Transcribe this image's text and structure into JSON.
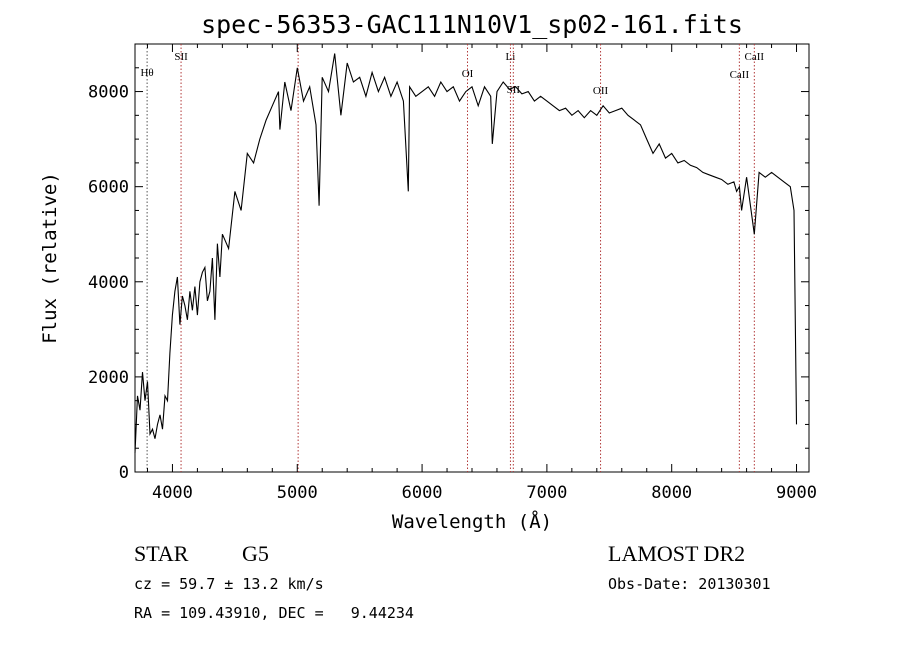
{
  "chart_data": {
    "type": "line",
    "title": "spec-56353-GAC111N10V1_sp02-161.fits",
    "xlabel": "Wavelength (Å)",
    "ylabel": "Flux (relative)",
    "xlim": [
      3700,
      9100
    ],
    "ylim": [
      0,
      9000
    ],
    "xticks": [
      4000,
      5000,
      6000,
      7000,
      8000,
      9000
    ],
    "yticks": [
      0,
      2000,
      4000,
      6000,
      8000
    ],
    "series": [
      {
        "name": "flux",
        "x": [
          3700,
          3720,
          3740,
          3760,
          3780,
          3800,
          3820,
          3840,
          3860,
          3880,
          3900,
          3920,
          3940,
          3960,
          3980,
          4000,
          4020,
          4040,
          4060,
          4080,
          4100,
          4120,
          4140,
          4160,
          4180,
          4200,
          4220,
          4240,
          4260,
          4280,
          4300,
          4320,
          4340,
          4360,
          4380,
          4400,
          4450,
          4500,
          4550,
          4600,
          4650,
          4700,
          4750,
          4800,
          4850,
          4861,
          4900,
          4950,
          5000,
          5050,
          5100,
          5150,
          5175,
          5200,
          5250,
          5300,
          5350,
          5400,
          5450,
          5500,
          5550,
          5600,
          5650,
          5700,
          5750,
          5800,
          5850,
          5890,
          5900,
          5950,
          6000,
          6050,
          6100,
          6150,
          6200,
          6250,
          6300,
          6350,
          6400,
          6450,
          6500,
          6550,
          6563,
          6600,
          6650,
          6700,
          6750,
          6800,
          6850,
          6900,
          6950,
          7000,
          7050,
          7100,
          7150,
          7200,
          7250,
          7300,
          7350,
          7400,
          7450,
          7500,
          7550,
          7600,
          7650,
          7700,
          7750,
          7800,
          7850,
          7900,
          7950,
          8000,
          8050,
          8100,
          8150,
          8200,
          8250,
          8300,
          8350,
          8400,
          8450,
          8498,
          8520,
          8542,
          8560,
          8600,
          8662,
          8700,
          8750,
          8800,
          8850,
          8900,
          8950,
          8980,
          9000
        ],
        "values": [
          400,
          1600,
          1300,
          2100,
          1500,
          1900,
          800,
          900,
          700,
          1000,
          1200,
          900,
          1600,
          1500,
          2500,
          3300,
          3800,
          4100,
          3100,
          3700,
          3500,
          3200,
          3800,
          3400,
          3900,
          3300,
          4000,
          4200,
          4300,
          3600,
          3800,
          4500,
          3200,
          4800,
          4100,
          5000,
          4700,
          5900,
          5500,
          6700,
          6500,
          7000,
          7400,
          7700,
          8000,
          7200,
          8200,
          7600,
          8500,
          7800,
          8100,
          7300,
          5600,
          8300,
          8000,
          8800,
          7500,
          8600,
          8200,
          8300,
          7900,
          8400,
          8000,
          8300,
          7900,
          8200,
          7800,
          5900,
          8100,
          7900,
          8000,
          8100,
          7900,
          8200,
          8000,
          8100,
          7800,
          8000,
          8100,
          7700,
          8100,
          7900,
          6900,
          8000,
          8200,
          8050,
          8100,
          7950,
          8000,
          7800,
          7900,
          7800,
          7700,
          7600,
          7650,
          7500,
          7600,
          7450,
          7600,
          7500,
          7700,
          7550,
          7600,
          7650,
          7500,
          7400,
          7300,
          7000,
          6700,
          6900,
          6600,
          6700,
          6500,
          6550,
          6450,
          6400,
          6300,
          6250,
          6200,
          6150,
          6050,
          6100,
          5900,
          6000,
          5500,
          6200,
          5000,
          6300,
          6200,
          6300,
          6200,
          6100,
          6000,
          5500,
          1000
        ]
      }
    ],
    "lines": [
      {
        "label": "Hθ",
        "x": 3797
      },
      {
        "label": "SII",
        "x": 4069
      },
      {
        "label": "",
        "x": 5007
      },
      {
        "label": "OI",
        "x": 6364
      },
      {
        "label": "Li",
        "x": 6708
      },
      {
        "label": "SII",
        "x": 6731
      },
      {
        "label": "OII",
        "x": 7430
      },
      {
        "label": "CaII",
        "x": 8542
      },
      {
        "label": "CaII",
        "x": 8662
      }
    ]
  },
  "info": {
    "object_class": "STAR",
    "subclass": "G5",
    "survey": "LAMOST DR2",
    "redshift": "cz = 59.7 ± 13.2 km/s",
    "obs_date": "Obs-Date: 20130301",
    "coords": "RA = 109.43910, DEC =   9.44234"
  },
  "colors": {
    "line": "#000000",
    "marker": "#b23a3a",
    "marker_alt": "#555555"
  }
}
